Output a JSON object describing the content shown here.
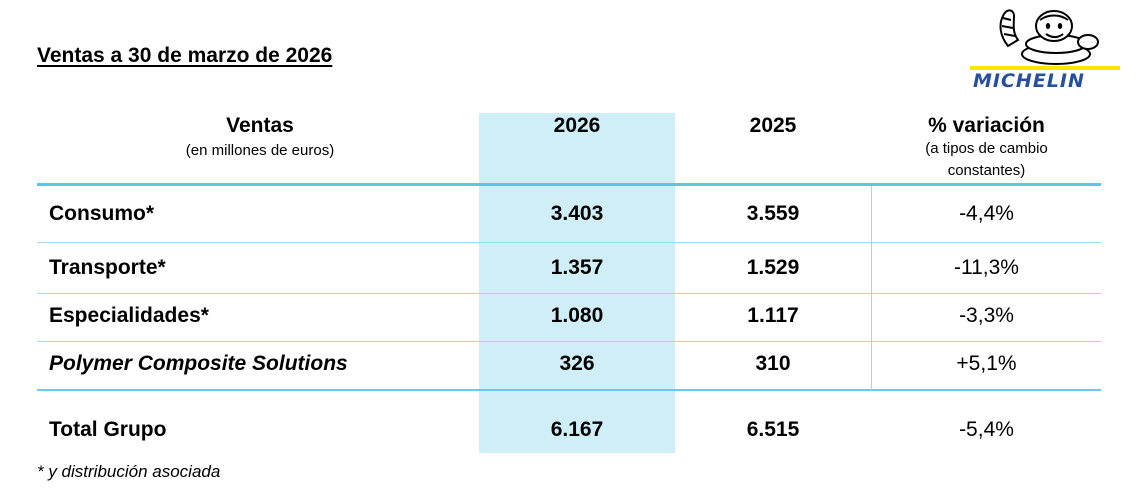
{
  "title": "Ventas a 30 de marzo de 2026",
  "logo": {
    "brand": "MICHELIN",
    "mascot_icon": "michelin-man-icon",
    "brand_color": "#27509b"
  },
  "colors": {
    "highlight": "#cfeef8",
    "rule": "#5cc3e9"
  },
  "table": {
    "header": {
      "label_main": "Ventas",
      "label_sub": "(en millones de euros)",
      "col1": "2026",
      "col2": "2025",
      "col3_main": "% variación",
      "col3_sub1": "(a tipos de cambio",
      "col3_sub2": "constantes)"
    },
    "rows": [
      {
        "label": "Consumo*",
        "v2026": "3.403",
        "v2025": "3.559",
        "var": "-4,4%"
      },
      {
        "label": "Transporte*",
        "v2026": "1.357",
        "v2025": "1.529",
        "var": "-11,3%"
      },
      {
        "label": "Especialidades*",
        "v2026": "1.080",
        "v2025": "1.117",
        "var": "-3,3%"
      },
      {
        "label": "Polymer Composite Solutions",
        "v2026": "326",
        "v2025": "310",
        "var": "+5,1%"
      }
    ],
    "total": {
      "label": "Total Grupo",
      "v2026": "6.167",
      "v2025": "6.515",
      "var": "-5,4%"
    }
  },
  "footnote": "* y distribución asociada"
}
